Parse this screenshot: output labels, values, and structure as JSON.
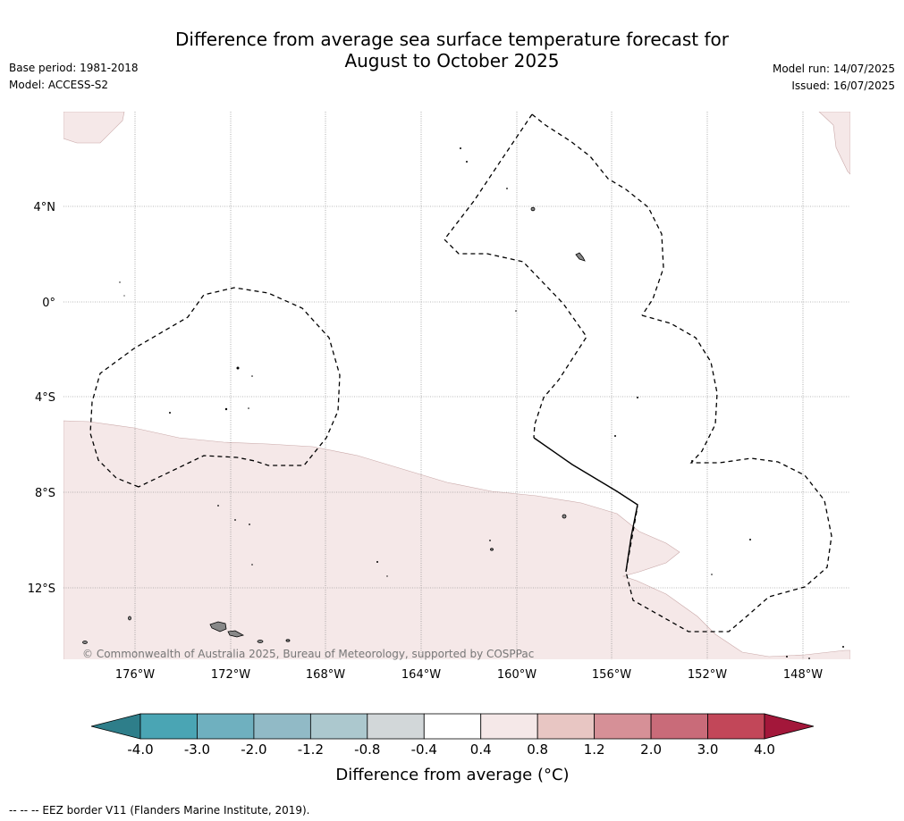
{
  "header": {
    "title_line1": "Difference from average sea surface temperature forecast for",
    "title_line2": "August to October 2025",
    "base_period": "Base period: 1981-2018",
    "model": "Model: ACCESS-S2",
    "model_run": "Model run: 14/07/2025",
    "issued": "Issued: 16/07/2025"
  },
  "map": {
    "lat_labels": [
      "4°N",
      "0°",
      "4°S",
      "8°S",
      "12°S"
    ],
    "lon_labels": [
      "176°W",
      "172°W",
      "168°W",
      "164°W",
      "160°W",
      "156°W",
      "152°W",
      "148°W"
    ],
    "copyright": "© Commonwealth of Australia 2025, Bureau of Meteorology, supported by COSPPac",
    "anomaly_fill_color": "#f5e8e8"
  },
  "colorbar": {
    "title": "Difference from average (°C)",
    "tick_labels": [
      "-4.0",
      "-3.0",
      "-2.0",
      "-1.2",
      "-0.8",
      "-0.4",
      "0.4",
      "0.8",
      "1.2",
      "2.0",
      "3.0",
      "4.0"
    ],
    "colors": [
      "#2e7e8a",
      "#4aa5b4",
      "#6fb0bf",
      "#91bac6",
      "#acc8ce",
      "#d2d7d9",
      "#ffffff",
      "#f5e8e8",
      "#e8c6c3",
      "#d69097",
      "#c96b79",
      "#c24759",
      "#a3173a"
    ]
  },
  "footer": {
    "legend_text": "-- -- -- EEZ border V11 (Flanders Marine Institute, 2019)."
  }
}
